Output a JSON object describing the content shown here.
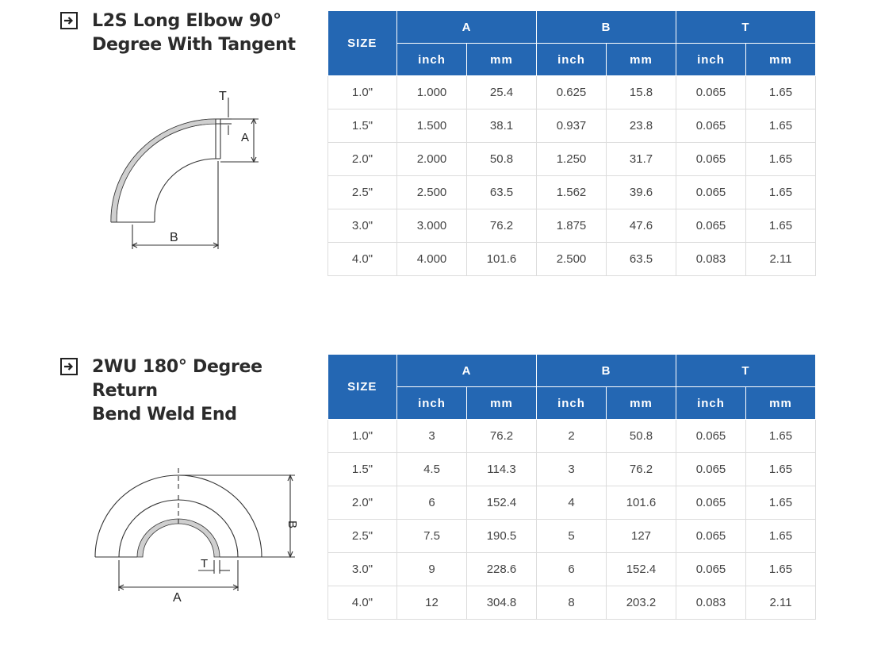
{
  "sections": [
    {
      "title_line1": "L2S Long Elbow 90°",
      "title_line2": "Degree With Tangent",
      "diagram_labels": {
        "t": "T",
        "a": "A",
        "b": "B"
      },
      "table": {
        "size_header": "SIZE",
        "groups": [
          "A",
          "B",
          "T"
        ],
        "units": [
          "inch",
          "mm",
          "inch",
          "mm",
          "inch",
          "mm"
        ],
        "rows": [
          [
            "1.0\"",
            "1.000",
            "25.4",
            "0.625",
            "15.8",
            "0.065",
            "1.65"
          ],
          [
            "1.5\"",
            "1.500",
            "38.1",
            "0.937",
            "23.8",
            "0.065",
            "1.65"
          ],
          [
            "2.0\"",
            "2.000",
            "50.8",
            "1.250",
            "31.7",
            "0.065",
            "1.65"
          ],
          [
            "2.5\"",
            "2.500",
            "63.5",
            "1.562",
            "39.6",
            "0.065",
            "1.65"
          ],
          [
            "3.0\"",
            "3.000",
            "76.2",
            "1.875",
            "47.6",
            "0.065",
            "1.65"
          ],
          [
            "4.0\"",
            "4.000",
            "101.6",
            "2.500",
            "63.5",
            "0.083",
            "2.11"
          ]
        ]
      }
    },
    {
      "title_line1": "2WU 180° Degree Return",
      "title_line2": "Bend Weld End",
      "diagram_labels": {
        "t": "T",
        "a": "A",
        "b": "B"
      },
      "table": {
        "size_header": "SIZE",
        "groups": [
          "A",
          "B",
          "T"
        ],
        "units": [
          "inch",
          "mm",
          "inch",
          "mm",
          "inch",
          "mm"
        ],
        "rows": [
          [
            "1.0\"",
            "3",
            "76.2",
            "2",
            "50.8",
            "0.065",
            "1.65"
          ],
          [
            "1.5\"",
            "4.5",
            "114.3",
            "3",
            "76.2",
            "0.065",
            "1.65"
          ],
          [
            "2.0\"",
            "6",
            "152.4",
            "4",
            "101.6",
            "0.065",
            "1.65"
          ],
          [
            "2.5\"",
            "7.5",
            "190.5",
            "5",
            "127",
            "0.065",
            "1.65"
          ],
          [
            "3.0\"",
            "9",
            "228.6",
            "6",
            "152.4",
            "0.065",
            "1.65"
          ],
          [
            "4.0\"",
            "12",
            "304.8",
            "8",
            "203.2",
            "0.083",
            "2.11"
          ]
        ]
      }
    }
  ],
  "colors": {
    "header_blue": "#2467b3",
    "grid": "#dcdcdc",
    "text": "#444444"
  },
  "icons": {
    "section_marker": "arrow-right-box-icon"
  }
}
